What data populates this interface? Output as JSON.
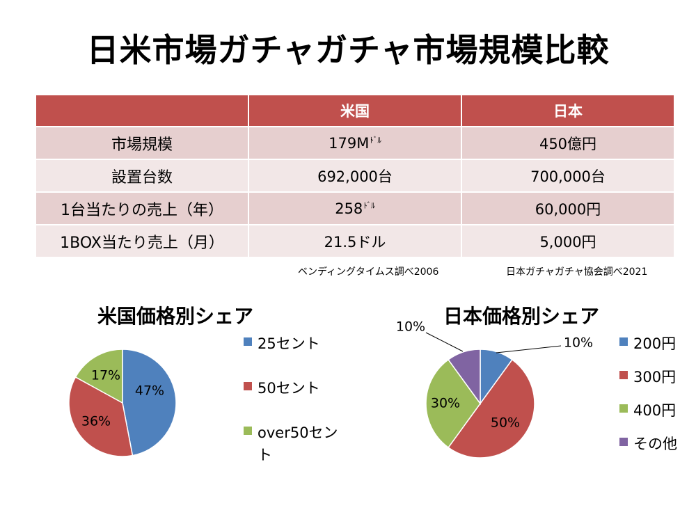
{
  "title": "日米市場ガチャガチャ市場規模比較",
  "table": {
    "headers": [
      "",
      "米国",
      "日本"
    ],
    "rows": [
      {
        "label": "市場規模",
        "us": "179M",
        "us_unit": "ﾄﾞﾙ",
        "jp": "450億円"
      },
      {
        "label": "設置台数",
        "us": "692,000台",
        "us_unit": "",
        "jp": "700,000台"
      },
      {
        "label": "1台当たりの売上（年）",
        "us": "258",
        "us_unit": "ﾄﾞﾙ",
        "jp": "60,000円"
      },
      {
        "label": "1BOX当たり売上（月）",
        "us": "21.5ドル",
        "us_unit": "",
        "jp": "5,000円"
      }
    ]
  },
  "sources": {
    "us": "ベンディングタイムス調べ2006",
    "jp": "日本ガチャガチャ協会調べ2021"
  },
  "colors": {
    "header": "#c0504d",
    "row_odd": "#e6cfcf",
    "row_even": "#f2e7e7",
    "blue": "#4f81bd",
    "red": "#c0504d",
    "green": "#9bbb59",
    "purple": "#8064a2"
  },
  "chart_data": [
    {
      "type": "pie",
      "title": "米国価格別シェア",
      "categories": [
        "25セント",
        "50セント",
        "over50セント"
      ],
      "values": [
        47,
        36,
        17
      ],
      "labels": [
        "47%",
        "36%",
        "17%"
      ],
      "colors": [
        "#4f81bd",
        "#c0504d",
        "#9bbb59"
      ],
      "legend": "right"
    },
    {
      "type": "pie",
      "title": "日本価格別シェア",
      "categories": [
        "200円",
        "300円",
        "400円",
        "その他"
      ],
      "values": [
        10,
        50,
        30,
        10
      ],
      "labels": [
        "10%",
        "50%",
        "30%",
        "10%"
      ],
      "colors": [
        "#4f81bd",
        "#c0504d",
        "#9bbb59",
        "#8064a2"
      ],
      "legend": "right"
    }
  ]
}
